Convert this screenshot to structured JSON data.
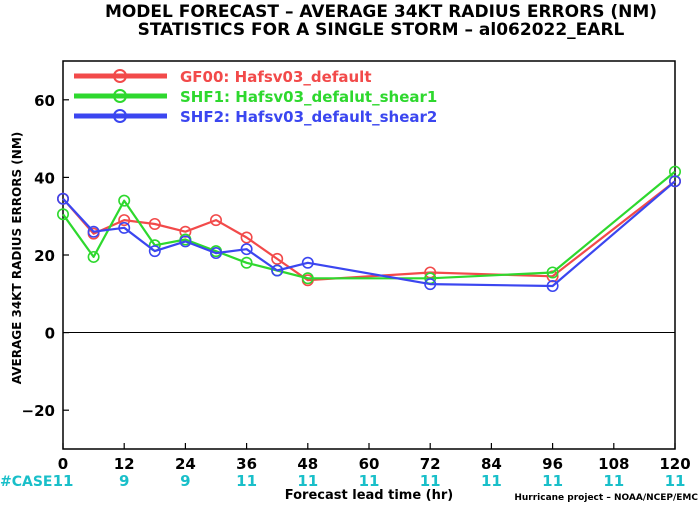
{
  "chart_data": {
    "type": "line",
    "title": "MODEL FORECAST – AVERAGE 34KT RADIUS ERRORS (NM)",
    "subtitle": "STATISTICS FOR A SINGLE STORM – al062022_EARL",
    "xlabel": "Forecast lead time (hr)",
    "ylabel": "AVERAGE 34KT RADIUS ERRORS (NM)",
    "xlim": [
      0,
      120
    ],
    "ylim": [
      -30,
      70
    ],
    "xticks": [
      "0",
      "12",
      "24",
      "36",
      "48",
      "60",
      "72",
      "84",
      "96",
      "108",
      "120"
    ],
    "yticks": [
      "−20",
      "0",
      "20",
      "40",
      "60"
    ],
    "legend_position": "top-left",
    "series": [
      {
        "name": "GF00: Hafsv03_default",
        "color": "#f24a4a",
        "x": [
          0,
          6,
          12,
          18,
          24,
          30,
          36,
          42,
          48,
          72,
          96,
          120
        ],
        "y": [
          34.5,
          25.5,
          29,
          28,
          26,
          29,
          24.5,
          19,
          13.5,
          15.5,
          14.5,
          39
        ]
      },
      {
        "name": "SHF1: Hafsv03_defalut_shear1",
        "color": "#2ed82e",
        "x": [
          0,
          6,
          12,
          18,
          24,
          30,
          36,
          42,
          48,
          72,
          96,
          120
        ],
        "y": [
          30.5,
          19.5,
          34,
          22.5,
          24,
          21,
          18,
          16,
          14,
          14,
          15.5,
          41.5
        ]
      },
      {
        "name": "SHF2: Hafsv03_default_shear2",
        "color": "#3b46f0",
        "x": [
          0,
          6,
          12,
          18,
          24,
          30,
          36,
          42,
          48,
          72,
          96,
          120
        ],
        "y": [
          34.5,
          26,
          27,
          21,
          23.5,
          20.5,
          21.5,
          16,
          18,
          12.5,
          12,
          39
        ]
      }
    ],
    "cases": {
      "label": "#CASE",
      "x": [
        0,
        12,
        24,
        36,
        48,
        60,
        72,
        84,
        96,
        108,
        120
      ],
      "values": [
        "11",
        "9",
        "9",
        "11",
        "11",
        "11",
        "11",
        "11",
        "11",
        "11",
        "11"
      ]
    },
    "credit": "Hurricane project – NOAA/NCEP/EMC"
  }
}
